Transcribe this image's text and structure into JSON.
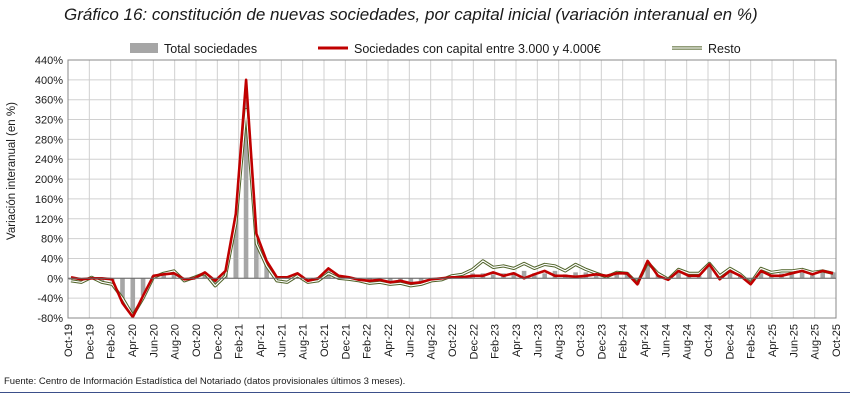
{
  "chart_data": {
    "type": "bar",
    "title": "Gráfico 16: constitución de nuevas sociedades, por capital inicial (variación interanual en %)",
    "ylabel": "Variación interanual (en %)",
    "xlabel": "",
    "ylim": [
      -80,
      440
    ],
    "ytick_values": [
      -80,
      -40,
      0,
      40,
      80,
      120,
      160,
      200,
      240,
      280,
      320,
      360,
      400,
      440
    ],
    "ytick_labels": [
      "-80%",
      "-40%",
      "0%",
      "40%",
      "80%",
      "120%",
      "160%",
      "200%",
      "240%",
      "280%",
      "320%",
      "360%",
      "400%",
      "440%"
    ],
    "x_tick_labels": [
      "Oct-19",
      "Dec-19",
      "Feb-20",
      "Apr-20",
      "Jun-20",
      "Aug-20",
      "Oct-20",
      "Dec-20",
      "Feb-21",
      "Apr-21",
      "Jun-21",
      "Aug-21",
      "Oct-21",
      "Dec-21",
      "Feb-22",
      "Apr-22",
      "Jun-22",
      "Aug-22",
      "Oct-22",
      "Dec-22",
      "Feb-23",
      "Apr-23",
      "Jun-23",
      "Aug-23",
      "Oct-23",
      "Dec-23",
      "Feb-24",
      "Apr-24",
      "Jun-24",
      "Aug-24",
      "Oct-24",
      "Dec-24",
      "Feb-25",
      "Apr-25",
      "Jun-25",
      "Aug-25",
      "Oct-25"
    ],
    "legend_position": "top",
    "grid": true,
    "series": [
      {
        "name": "Total sociedades",
        "kind": "bar",
        "color": "#a6a6a6",
        "values": [
          -3,
          -5,
          0,
          -8,
          -5,
          -45,
          -75,
          -35,
          5,
          10,
          12,
          -2,
          2,
          12,
          -10,
          10,
          120,
          360,
          80,
          30,
          0,
          0,
          8,
          -5,
          -2,
          15,
          3,
          2,
          -3,
          -8,
          -5,
          -10,
          -8,
          -12,
          -8,
          -2,
          0,
          3,
          5,
          10,
          10,
          8,
          10,
          12,
          15,
          10,
          10,
          15,
          8,
          12,
          12,
          10,
          5,
          10,
          12,
          -12,
          30,
          8,
          -3,
          12,
          8,
          5,
          28,
          5,
          18,
          5,
          -10,
          15,
          8,
          10,
          12,
          12,
          10,
          12,
          12
        ]
      },
      {
        "name": "Sociedades con capital entre 3.000 y 4.000€",
        "kind": "line",
        "color": "#c00000",
        "values": [
          2,
          -2,
          0,
          0,
          -2,
          -50,
          -78,
          -35,
          5,
          8,
          10,
          -2,
          0,
          12,
          -5,
          15,
          130,
          400,
          90,
          35,
          2,
          2,
          10,
          -5,
          0,
          20,
          5,
          2,
          -3,
          -5,
          -3,
          -8,
          -5,
          -10,
          -8,
          -2,
          0,
          2,
          2,
          5,
          5,
          12,
          5,
          10,
          0,
          8,
          15,
          5,
          5,
          3,
          5,
          8,
          5,
          10,
          10,
          -12,
          35,
          5,
          -3,
          15,
          5,
          5,
          28,
          -2,
          15,
          5,
          -12,
          15,
          5,
          5,
          10,
          15,
          8,
          15,
          10
        ]
      },
      {
        "name": "Resto",
        "kind": "line",
        "color": "#4f6228",
        "values": [
          -5,
          -8,
          2,
          -8,
          -12,
          -40,
          -75,
          -40,
          2,
          10,
          15,
          -5,
          2,
          10,
          -15,
          5,
          110,
          340,
          70,
          25,
          -5,
          -8,
          5,
          -8,
          -5,
          10,
          0,
          -2,
          -5,
          -10,
          -8,
          -12,
          -10,
          -15,
          -12,
          -5,
          -3,
          5,
          8,
          18,
          35,
          22,
          25,
          20,
          30,
          20,
          28,
          25,
          15,
          28,
          18,
          10,
          3,
          12,
          10,
          -10,
          32,
          10,
          -2,
          18,
          10,
          10,
          30,
          5,
          20,
          8,
          -10,
          20,
          12,
          15,
          15,
          18,
          12,
          15,
          10
        ]
      }
    ]
  },
  "source_note": "Fuente: Centro de Información Estadística del Notariado (datos provisionales últimos 3 meses)."
}
